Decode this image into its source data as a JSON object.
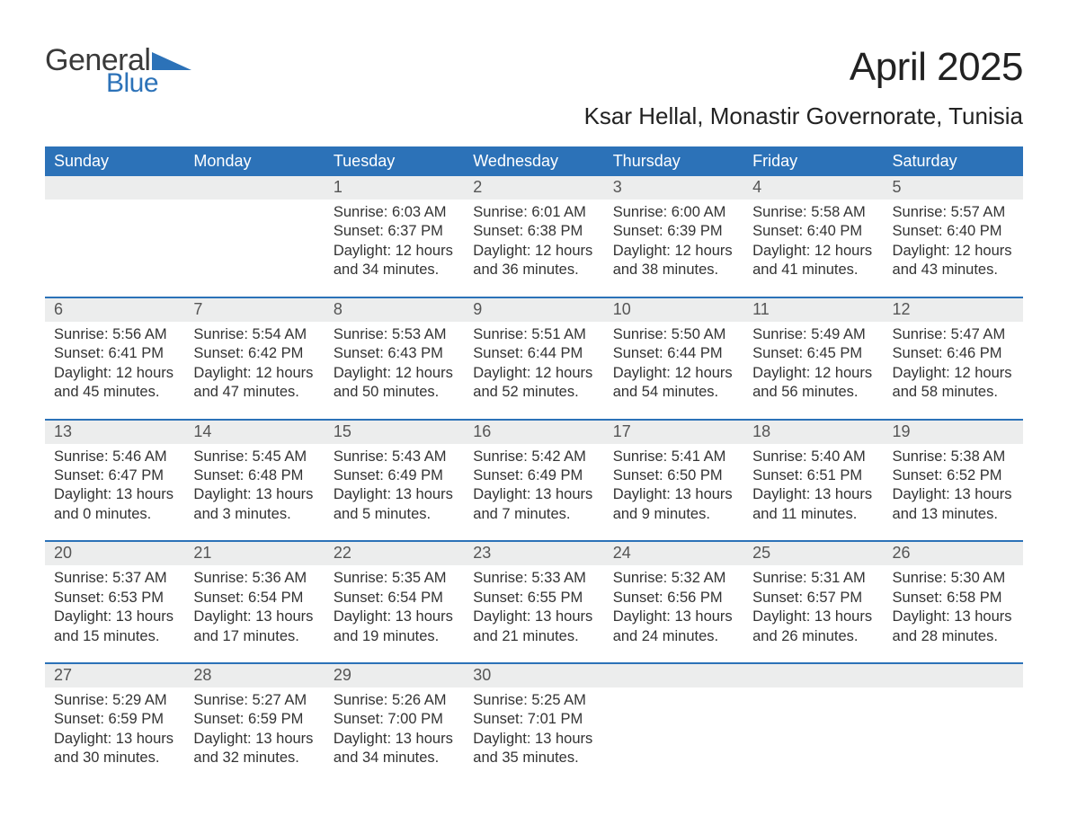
{
  "brand": {
    "word1": "General",
    "word2": "Blue"
  },
  "title": "April 2025",
  "location": "Ksar Hellal, Monastir Governorate, Tunisia",
  "colors": {
    "accent": "#2c72b8",
    "band": "#eceded",
    "text": "#333333",
    "background": "#ffffff"
  },
  "daysOfWeek": [
    "Sunday",
    "Monday",
    "Tuesday",
    "Wednesday",
    "Thursday",
    "Friday",
    "Saturday"
  ],
  "weeks": [
    [
      null,
      null,
      {
        "n": "1",
        "sunrise": "6:03 AM",
        "sunset": "6:37 PM",
        "daylight": "12 hours and 34 minutes."
      },
      {
        "n": "2",
        "sunrise": "6:01 AM",
        "sunset": "6:38 PM",
        "daylight": "12 hours and 36 minutes."
      },
      {
        "n": "3",
        "sunrise": "6:00 AM",
        "sunset": "6:39 PM",
        "daylight": "12 hours and 38 minutes."
      },
      {
        "n": "4",
        "sunrise": "5:58 AM",
        "sunset": "6:40 PM",
        "daylight": "12 hours and 41 minutes."
      },
      {
        "n": "5",
        "sunrise": "5:57 AM",
        "sunset": "6:40 PM",
        "daylight": "12 hours and 43 minutes."
      }
    ],
    [
      {
        "n": "6",
        "sunrise": "5:56 AM",
        "sunset": "6:41 PM",
        "daylight": "12 hours and 45 minutes."
      },
      {
        "n": "7",
        "sunrise": "5:54 AM",
        "sunset": "6:42 PM",
        "daylight": "12 hours and 47 minutes."
      },
      {
        "n": "8",
        "sunrise": "5:53 AM",
        "sunset": "6:43 PM",
        "daylight": "12 hours and 50 minutes."
      },
      {
        "n": "9",
        "sunrise": "5:51 AM",
        "sunset": "6:44 PM",
        "daylight": "12 hours and 52 minutes."
      },
      {
        "n": "10",
        "sunrise": "5:50 AM",
        "sunset": "6:44 PM",
        "daylight": "12 hours and 54 minutes."
      },
      {
        "n": "11",
        "sunrise": "5:49 AM",
        "sunset": "6:45 PM",
        "daylight": "12 hours and 56 minutes."
      },
      {
        "n": "12",
        "sunrise": "5:47 AM",
        "sunset": "6:46 PM",
        "daylight": "12 hours and 58 minutes."
      }
    ],
    [
      {
        "n": "13",
        "sunrise": "5:46 AM",
        "sunset": "6:47 PM",
        "daylight": "13 hours and 0 minutes."
      },
      {
        "n": "14",
        "sunrise": "5:45 AM",
        "sunset": "6:48 PM",
        "daylight": "13 hours and 3 minutes."
      },
      {
        "n": "15",
        "sunrise": "5:43 AM",
        "sunset": "6:49 PM",
        "daylight": "13 hours and 5 minutes."
      },
      {
        "n": "16",
        "sunrise": "5:42 AM",
        "sunset": "6:49 PM",
        "daylight": "13 hours and 7 minutes."
      },
      {
        "n": "17",
        "sunrise": "5:41 AM",
        "sunset": "6:50 PM",
        "daylight": "13 hours and 9 minutes."
      },
      {
        "n": "18",
        "sunrise": "5:40 AM",
        "sunset": "6:51 PM",
        "daylight": "13 hours and 11 minutes."
      },
      {
        "n": "19",
        "sunrise": "5:38 AM",
        "sunset": "6:52 PM",
        "daylight": "13 hours and 13 minutes."
      }
    ],
    [
      {
        "n": "20",
        "sunrise": "5:37 AM",
        "sunset": "6:53 PM",
        "daylight": "13 hours and 15 minutes."
      },
      {
        "n": "21",
        "sunrise": "5:36 AM",
        "sunset": "6:54 PM",
        "daylight": "13 hours and 17 minutes."
      },
      {
        "n": "22",
        "sunrise": "5:35 AM",
        "sunset": "6:54 PM",
        "daylight": "13 hours and 19 minutes."
      },
      {
        "n": "23",
        "sunrise": "5:33 AM",
        "sunset": "6:55 PM",
        "daylight": "13 hours and 21 minutes."
      },
      {
        "n": "24",
        "sunrise": "5:32 AM",
        "sunset": "6:56 PM",
        "daylight": "13 hours and 24 minutes."
      },
      {
        "n": "25",
        "sunrise": "5:31 AM",
        "sunset": "6:57 PM",
        "daylight": "13 hours and 26 minutes."
      },
      {
        "n": "26",
        "sunrise": "5:30 AM",
        "sunset": "6:58 PM",
        "daylight": "13 hours and 28 minutes."
      }
    ],
    [
      {
        "n": "27",
        "sunrise": "5:29 AM",
        "sunset": "6:59 PM",
        "daylight": "13 hours and 30 minutes."
      },
      {
        "n": "28",
        "sunrise": "5:27 AM",
        "sunset": "6:59 PM",
        "daylight": "13 hours and 32 minutes."
      },
      {
        "n": "29",
        "sunrise": "5:26 AM",
        "sunset": "7:00 PM",
        "daylight": "13 hours and 34 minutes."
      },
      {
        "n": "30",
        "sunrise": "5:25 AM",
        "sunset": "7:01 PM",
        "daylight": "13 hours and 35 minutes."
      },
      null,
      null,
      null
    ]
  ],
  "labels": {
    "sunrise": "Sunrise: ",
    "sunset": "Sunset: ",
    "daylight": "Daylight: "
  }
}
